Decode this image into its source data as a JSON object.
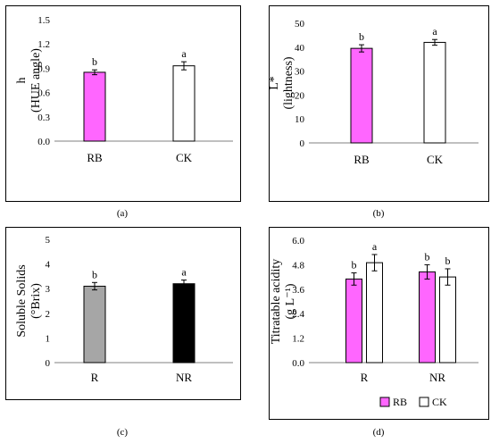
{
  "panels": {
    "a": {
      "caption": "(a)"
    },
    "b": {
      "caption": "(b)"
    },
    "c": {
      "caption": "(c)"
    },
    "d": {
      "caption": "(d)"
    }
  },
  "chart_data": [
    {
      "id": "a",
      "type": "bar",
      "ylabel_line1": "h",
      "ylabel_line2": "(HUE angle)",
      "ylim": [
        0,
        1.5
      ],
      "yticks": [
        "0.0",
        "0.3",
        "0.6",
        "0.9",
        "1.2",
        "1.5"
      ],
      "categories": [
        "RB",
        "CK"
      ],
      "values": [
        0.85,
        0.93
      ],
      "errors": [
        0.03,
        0.05
      ],
      "letters": [
        "b",
        "a"
      ],
      "colors": [
        "#ff66ff",
        "#ffffff"
      ]
    },
    {
      "id": "b",
      "type": "bar",
      "ylabel_line1": "L*",
      "ylabel_line2": "(lightness)",
      "ylim": [
        0,
        50
      ],
      "yticks": [
        "0",
        "10",
        "20",
        "30",
        "40",
        "50"
      ],
      "categories": [
        "RB",
        "CK"
      ],
      "values": [
        39.5,
        42
      ],
      "errors": [
        1.5,
        1.2
      ],
      "letters": [
        "b",
        "a"
      ],
      "colors": [
        "#ff66ff",
        "#ffffff"
      ]
    },
    {
      "id": "c",
      "type": "bar",
      "ylabel_line1": "Soluble Solids",
      "ylabel_line2": "(°Brix)",
      "ylim": [
        0,
        5
      ],
      "yticks": [
        "0",
        "1",
        "2",
        "3",
        "4",
        "5"
      ],
      "categories": [
        "R",
        "NR"
      ],
      "values": [
        3.1,
        3.2
      ],
      "errors": [
        0.15,
        0.15
      ],
      "letters": [
        "b",
        "a"
      ],
      "colors": [
        "#a6a6a6",
        "#000000"
      ]
    },
    {
      "id": "d",
      "type": "bar",
      "ylabel_line1": "Titratable acidity",
      "ylabel_line2": "(g L⁻¹)",
      "ylim": [
        0,
        6
      ],
      "yticks": [
        "0.0",
        "1.2",
        "2.4",
        "3.6",
        "4.8",
        "6.0"
      ],
      "categories": [
        "R",
        "NR"
      ],
      "series": [
        {
          "name": "RB",
          "values": [
            4.1,
            4.45
          ],
          "errors": [
            0.3,
            0.35
          ],
          "letters": [
            "b",
            "b"
          ],
          "color": "#ff66ff"
        },
        {
          "name": "CK",
          "values": [
            4.9,
            4.2
          ],
          "errors": [
            0.4,
            0.4
          ],
          "letters": [
            "a",
            "b"
          ],
          "color": "#ffffff"
        }
      ],
      "legend_position": "bottom"
    }
  ]
}
